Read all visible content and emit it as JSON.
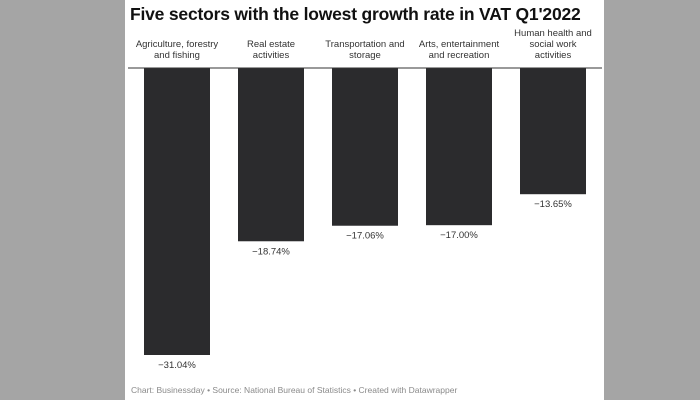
{
  "chart_data": {
    "type": "bar",
    "orientation": "vertical-negative",
    "title": "Five sectors with the lowest growth rate in VAT Q1'2022",
    "categories": [
      [
        "Agriculture, forestry",
        "and fishing"
      ],
      [
        "Real estate",
        "activities"
      ],
      [
        "Transportation and",
        "storage"
      ],
      [
        "Arts, entertainment",
        "and recreation"
      ],
      [
        "Human health and",
        "social work",
        "activities"
      ]
    ],
    "values": [
      -31.04,
      -18.74,
      -17.06,
      -17.0,
      -13.65
    ],
    "value_labels": [
      "−31.04%",
      "−18.74%",
      "−17.06%",
      "−17.00%",
      "−13.65%"
    ],
    "ylim": [
      -31.04,
      0
    ],
    "bar_color": "#2b2b2d",
    "xlabel": "",
    "ylabel": ""
  },
  "footer": {
    "credit": "Chart: Businessday • Source: National Bureau of Statistics • Created with Datawrapper"
  },
  "colors": {
    "background": "#a5a5a5",
    "panel": "#ffffff"
  }
}
